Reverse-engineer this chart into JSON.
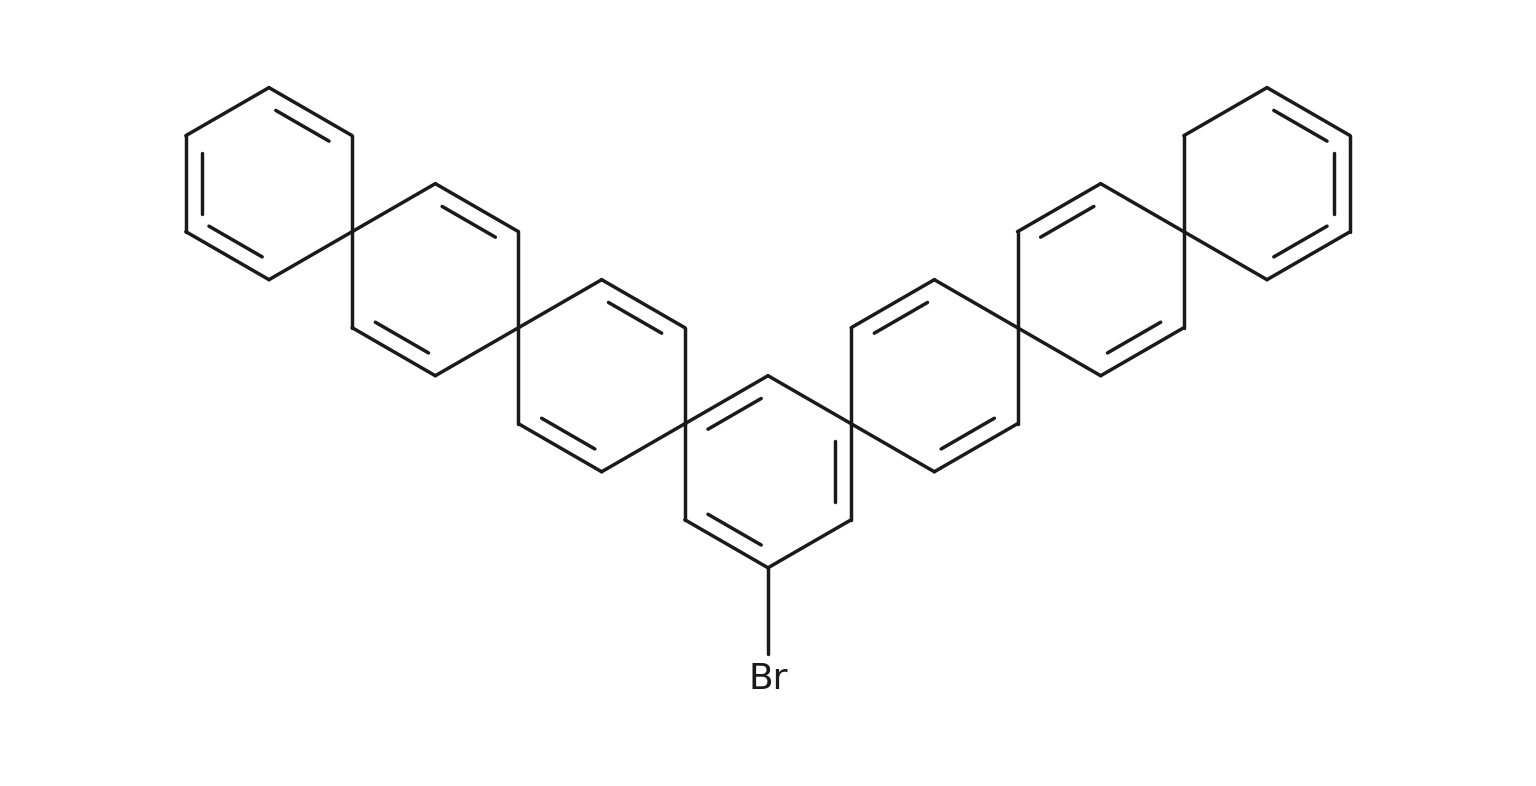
{
  "background_color": "#ffffff",
  "line_color": "#1a1a1a",
  "line_width": 2.5,
  "br_label": "Br",
  "br_fontsize": 26,
  "figsize": [
    15.36,
    7.86
  ],
  "dpi": 100
}
